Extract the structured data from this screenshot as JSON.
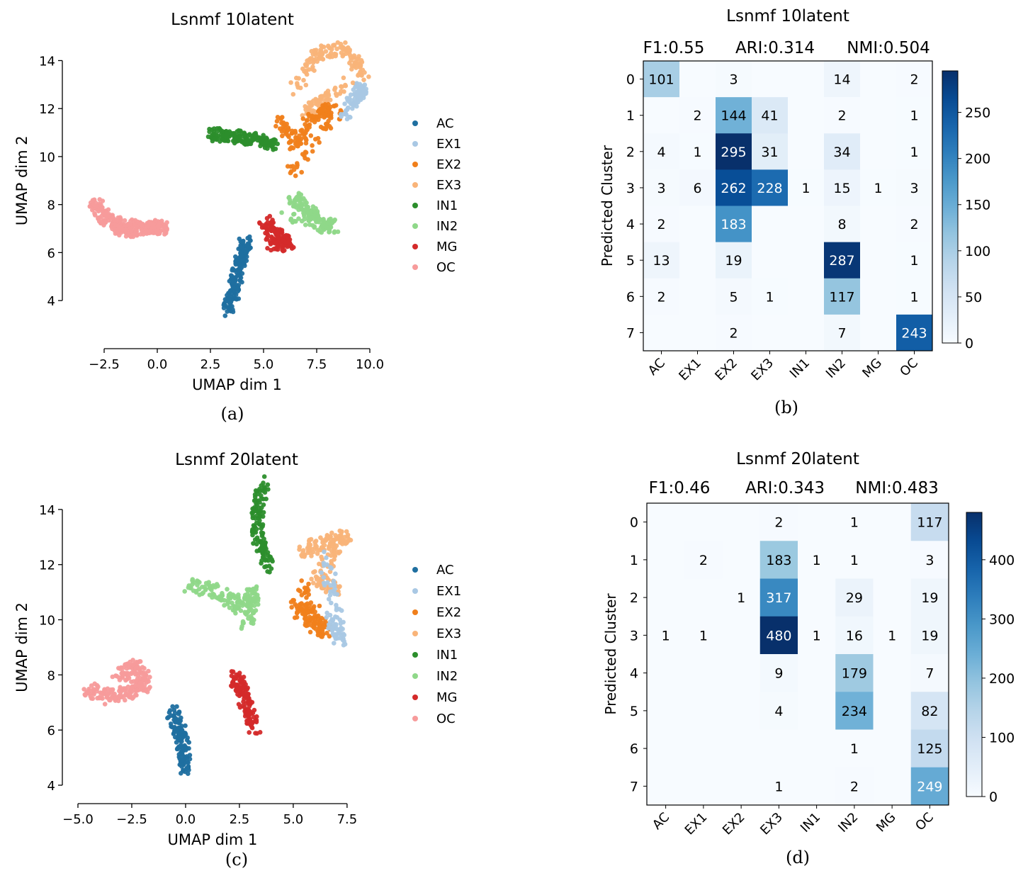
{
  "chart_data": [
    {
      "id": "a",
      "type": "scatter",
      "title": "Lsnmf 10latent",
      "xlabel": "UMAP dim 1",
      "ylabel": "UMAP dim 2",
      "xlim": [
        -3.2,
        10.0
      ],
      "ylim": [
        3.0,
        14.9
      ],
      "xticks": [
        -2.5,
        0.0,
        2.5,
        5.0,
        7.5,
        10.0
      ],
      "xtick_labels": [
        "−2.5",
        "0.0",
        "2.5",
        "5.0",
        "7.5",
        "10.0"
      ],
      "yticks": [
        4,
        6,
        8,
        10,
        12,
        14
      ],
      "legend": [
        {
          "name": "AC",
          "color": "#1f6fa0"
        },
        {
          "name": "EX1",
          "color": "#a9c8e4"
        },
        {
          "name": "EX2",
          "color": "#f07f1b"
        },
        {
          "name": "EX3",
          "color": "#f9b479"
        },
        {
          "name": "IN1",
          "color": "#2c8e2c"
        },
        {
          "name": "IN2",
          "color": "#8fd889"
        },
        {
          "name": "MG",
          "color": "#d42a2a"
        },
        {
          "name": "OC",
          "color": "#f79b9b"
        }
      ],
      "clusters": [
        {
          "label": "OC",
          "points": [
            [
              -3.0,
              8.1
            ],
            [
              -2.5,
              7.5
            ],
            [
              -2.0,
              7.1
            ],
            [
              -1.4,
              6.9
            ],
            [
              -0.8,
              7.0
            ],
            [
              -0.2,
              7.1
            ],
            [
              0.3,
              7.0
            ],
            [
              -1.8,
              7.2
            ]
          ]
        },
        {
          "label": "IN1",
          "points": [
            [
              2.5,
              10.9
            ],
            [
              3.2,
              10.9
            ],
            [
              4.0,
              10.8
            ],
            [
              4.8,
              10.7
            ],
            [
              5.5,
              10.5
            ]
          ]
        },
        {
          "label": "EX3",
          "points": [
            [
              6.5,
              12.8
            ],
            [
              7.5,
              14.3
            ],
            [
              8.8,
              14.5
            ],
            [
              9.8,
              13.5
            ],
            [
              7.0,
              11.8
            ],
            [
              8.0,
              12.5
            ]
          ]
        },
        {
          "label": "EX2",
          "points": [
            [
              5.8,
              11.5
            ],
            [
              6.5,
              10.5
            ],
            [
              7.5,
              11.8
            ],
            [
              8.5,
              12.0
            ],
            [
              6.3,
              9.2
            ]
          ]
        },
        {
          "label": "EX1",
          "points": [
            [
              9.2,
              12.3
            ],
            [
              9.6,
              12.9
            ],
            [
              8.7,
              11.5
            ]
          ]
        },
        {
          "label": "IN2",
          "points": [
            [
              6.3,
              8.3
            ],
            [
              7.0,
              7.9
            ],
            [
              7.7,
              7.3
            ],
            [
              8.3,
              7.0
            ],
            [
              6.0,
              7.6
            ]
          ]
        },
        {
          "label": "MG",
          "points": [
            [
              5.0,
              7.3
            ],
            [
              5.6,
              6.8
            ],
            [
              6.2,
              6.3
            ],
            [
              5.3,
              6.4
            ]
          ]
        },
        {
          "label": "AC",
          "points": [
            [
              3.3,
              3.5
            ],
            [
              3.6,
              4.4
            ],
            [
              3.8,
              5.2
            ],
            [
              4.0,
              6.0
            ],
            [
              4.2,
              6.5
            ]
          ]
        }
      ]
    },
    {
      "id": "b",
      "type": "heatmap",
      "title": "Lsnmf 10latent",
      "metrics": [
        {
          "label": "F1:0.55"
        },
        {
          "label": "ARI:0.314"
        },
        {
          "label": "NMI:0.504"
        }
      ],
      "ylabel": "Predicted Cluster",
      "rows": [
        "0",
        "1",
        "2",
        "3",
        "4",
        "5",
        "6",
        "7"
      ],
      "columns": [
        "AC",
        "EX1",
        "EX2",
        "EX3",
        "IN1",
        "IN2",
        "MG",
        "OC"
      ],
      "values": [
        [
          101,
          0,
          3,
          0,
          0,
          14,
          0,
          2
        ],
        [
          0,
          2,
          144,
          41,
          0,
          2,
          0,
          1
        ],
        [
          4,
          1,
          295,
          31,
          0,
          34,
          0,
          1
        ],
        [
          3,
          6,
          262,
          228,
          1,
          15,
          1,
          3
        ],
        [
          2,
          0,
          183,
          0,
          0,
          8,
          0,
          2
        ],
        [
          13,
          0,
          19,
          0,
          0,
          287,
          0,
          1
        ],
        [
          2,
          0,
          5,
          1,
          0,
          117,
          0,
          1
        ],
        [
          0,
          0,
          2,
          0,
          0,
          7,
          0,
          243
        ]
      ],
      "colorbar_ticks": [
        0,
        50,
        100,
        150,
        200,
        250
      ],
      "colorbar_max": 295
    },
    {
      "id": "c",
      "type": "scatter",
      "title": "Lsnmf 20latent",
      "xlabel": "UMAP dim 1",
      "ylabel": "UMAP dim 2",
      "xlim": [
        -5.0,
        7.8
      ],
      "ylim": [
        4.0,
        15.0
      ],
      "xticks": [
        -5.0,
        -2.5,
        0.0,
        2.5,
        5.0,
        7.5
      ],
      "xtick_labels": [
        "−5.0",
        "−2.5",
        "0.0",
        "2.5",
        "5.0",
        "7.5"
      ],
      "yticks": [
        4,
        6,
        8,
        10,
        12,
        14
      ],
      "legend": [
        {
          "name": "AC",
          "color": "#1f6fa0"
        },
        {
          "name": "EX1",
          "color": "#a9c8e4"
        },
        {
          "name": "EX2",
          "color": "#f07f1b"
        },
        {
          "name": "EX3",
          "color": "#f9b479"
        },
        {
          "name": "IN1",
          "color": "#2c8e2c"
        },
        {
          "name": "IN2",
          "color": "#8fd889"
        },
        {
          "name": "MG",
          "color": "#d42a2a"
        },
        {
          "name": "OC",
          "color": "#f79b9b"
        }
      ],
      "clusters": [
        {
          "label": "OC",
          "points": [
            [
              -4.5,
              7.5
            ],
            [
              -3.6,
              7.2
            ],
            [
              -2.6,
              7.4
            ],
            [
              -1.8,
              7.7
            ],
            [
              -2.3,
              8.3
            ],
            [
              -3.2,
              8.0
            ]
          ]
        },
        {
          "label": "IN1",
          "points": [
            [
              3.6,
              15.0
            ],
            [
              3.3,
              13.8
            ],
            [
              3.4,
              12.8
            ],
            [
              3.8,
              12.0
            ]
          ]
        },
        {
          "label": "IN2",
          "points": [
            [
              0.2,
              11.3
            ],
            [
              1.5,
              11.0
            ],
            [
              2.5,
              10.5
            ],
            [
              3.2,
              11.0
            ],
            [
              2.8,
              9.8
            ]
          ]
        },
        {
          "label": "EX2",
          "points": [
            [
              5.0,
              10.5
            ],
            [
              5.8,
              10.0
            ],
            [
              6.5,
              9.5
            ],
            [
              5.4,
              11.3
            ]
          ]
        },
        {
          "label": "EX3",
          "points": [
            [
              5.5,
              12.5
            ],
            [
              6.5,
              12.8
            ],
            [
              7.5,
              13.0
            ],
            [
              6.0,
              11.5
            ],
            [
              7.0,
              11.0
            ]
          ]
        },
        {
          "label": "EX1",
          "points": [
            [
              6.8,
              10.0
            ],
            [
              7.2,
              9.2
            ],
            [
              6.5,
              12.3
            ]
          ]
        },
        {
          "label": "MG",
          "points": [
            [
              2.2,
              8.0
            ],
            [
              2.6,
              7.5
            ],
            [
              2.9,
              6.8
            ],
            [
              3.2,
              6.1
            ]
          ]
        },
        {
          "label": "AC",
          "points": [
            [
              -0.6,
              6.7
            ],
            [
              -0.3,
              6.0
            ],
            [
              -0.1,
              5.3
            ],
            [
              0.0,
              4.6
            ]
          ]
        }
      ]
    },
    {
      "id": "d",
      "type": "heatmap",
      "title": "Lsnmf 20latent",
      "metrics": [
        {
          "label": "F1:0.46"
        },
        {
          "label": "ARI:0.343"
        },
        {
          "label": "NMI:0.483"
        }
      ],
      "ylabel": "Predicted Cluster",
      "rows": [
        "0",
        "1",
        "2",
        "3",
        "4",
        "5",
        "6",
        "7"
      ],
      "columns": [
        "AC",
        "EX1",
        "EX2",
        "EX3",
        "IN1",
        "IN2",
        "MG",
        "OC"
      ],
      "values": [
        [
          0,
          0,
          0,
          2,
          0,
          1,
          0,
          117
        ],
        [
          0,
          2,
          0,
          183,
          1,
          1,
          0,
          3
        ],
        [
          0,
          0,
          1,
          317,
          0,
          29,
          0,
          19
        ],
        [
          1,
          1,
          0,
          480,
          1,
          16,
          1,
          19
        ],
        [
          0,
          0,
          0,
          9,
          0,
          179,
          0,
          7
        ],
        [
          0,
          0,
          0,
          4,
          0,
          234,
          0,
          82
        ],
        [
          0,
          0,
          0,
          0,
          0,
          1,
          0,
          125
        ],
        [
          0,
          0,
          0,
          1,
          0,
          2,
          0,
          249
        ]
      ],
      "colorbar_ticks": [
        0,
        100,
        200,
        300,
        400
      ],
      "colorbar_max": 480
    }
  ],
  "panel_labels": {
    "a": "(a)",
    "b": "(b)",
    "c": "(c)",
    "d": "(d)"
  }
}
